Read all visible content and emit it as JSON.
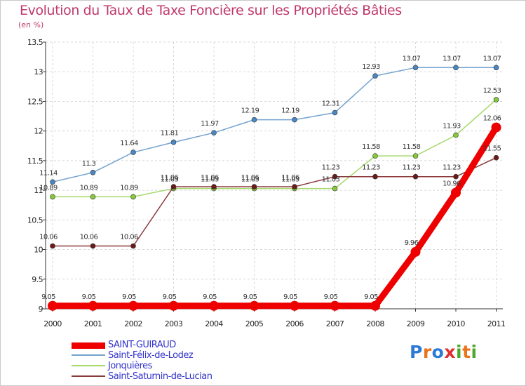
{
  "header": {
    "title": "Evolution du Taux de Taxe Foncière sur les Propriétés Bâties",
    "subtitle": "(en %)"
  },
  "chart_data": {
    "type": "line",
    "title": "Evolution du Taux de Taxe Foncière sur les Propriétés Bâties",
    "ylabel": "(en %)",
    "xlabel": "",
    "x": [
      "2000",
      "2001",
      "2002",
      "2003",
      "2004",
      "2005",
      "2006",
      "2007",
      "2008",
      "2009",
      "2010",
      "2011"
    ],
    "ylim": [
      9,
      13.5
    ],
    "yticks": [
      "9",
      "9.5",
      "10",
      "10.5",
      "11",
      "11.5",
      "12",
      "12.5",
      "13",
      "13.5"
    ],
    "series": [
      {
        "name": "Saint-Félix-de-Lodez",
        "color": "#74a3cf",
        "marker": "#4a86c2",
        "values": [
          11.14,
          11.3,
          11.64,
          11.81,
          11.97,
          12.19,
          12.19,
          12.31,
          12.93,
          13.07,
          13.07,
          13.07
        ],
        "labels": [
          "11.14",
          "11.3",
          "11.64",
          "11.81",
          "11.97",
          "12.19",
          "12.19",
          "12.31",
          "12.93",
          "13.07",
          "13.07",
          "13.07"
        ]
      },
      {
        "name": "Jonquières",
        "color": "#a5d96a",
        "marker": "#86c93c",
        "values": [
          10.89,
          10.89,
          10.89,
          11.03,
          11.03,
          11.03,
          11.03,
          11.03,
          11.58,
          11.58,
          11.93,
          12.53
        ],
        "labels": [
          "10.89",
          "10.89",
          "10.89",
          "11.03",
          "11.03",
          "11.03",
          "11.03",
          "11.03",
          "11.58",
          "11.58",
          "11.93",
          "12.53"
        ]
      },
      {
        "name": "Saint-Saturnin-de-Lucian",
        "color": "#8b3a3a",
        "marker": "#6b1a1a",
        "values": [
          10.06,
          10.06,
          10.06,
          11.06,
          11.06,
          11.06,
          11.06,
          11.23,
          11.23,
          11.23,
          11.23,
          11.55
        ],
        "labels": [
          "10.06",
          "10.06",
          "10.06",
          "11.06",
          "11.06",
          "11.06",
          "11.06",
          "11.23",
          "11.23",
          "11.23",
          "11.23",
          "11.55"
        ]
      },
      {
        "name": "SAINT-GUIRAUD",
        "color": "#ee0000",
        "marker": "#ee0000",
        "values": [
          9.05,
          9.05,
          9.05,
          9.05,
          9.05,
          9.05,
          9.05,
          9.05,
          9.05,
          9.96,
          10.96,
          12.06
        ],
        "labels": [
          "9.05",
          "9.05",
          "9.05",
          "9.05",
          "9.05",
          "9.05",
          "9.05",
          "9.05",
          "9.05",
          "9.96",
          "10.96",
          "12.06"
        ]
      }
    ],
    "legend": [
      "SAINT-GUIRAUD",
      "Saint-Félix-de-Lodez",
      "Jonquières",
      "Saint-Saturnin-de-Lucian"
    ],
    "legend_position": "bottom-left"
  },
  "legend": {
    "items": [
      {
        "label": "SAINT-GUIRAUD",
        "color": "#ee0000"
      },
      {
        "label": "Saint-Félix-de-Lodez",
        "color": "#74a3cf"
      },
      {
        "label": "Jonquières",
        "color": "#a5d96a"
      },
      {
        "label": "Saint-Saturnin-de-Lucian",
        "color": "#8b3a3a"
      }
    ]
  },
  "logo": {
    "text": "Proxiti",
    "letters": [
      "P",
      "r",
      "o",
      "x",
      "i",
      "t",
      "i"
    ],
    "colors": [
      "#2b7bd6",
      "#e8751a",
      "#2b7bd6",
      "#e03030",
      "#4aa82a",
      "#e8751a",
      "#4aa82a"
    ]
  }
}
